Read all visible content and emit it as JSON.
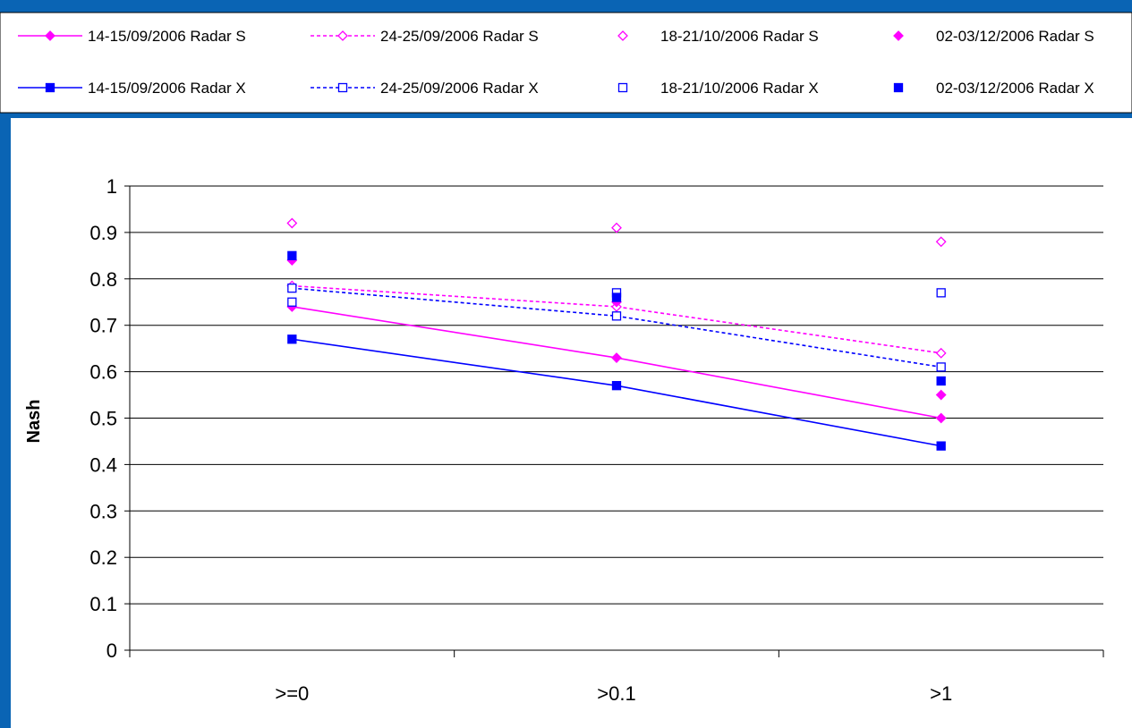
{
  "colors": {
    "background": "#0a64b4",
    "panel": "#ffffff",
    "radar_s": "#ff00ff",
    "radar_x": "#0000ff",
    "gridline": "#000000"
  },
  "chart_data": {
    "type": "line",
    "title": "",
    "xlabel": "",
    "ylabel": "Nash",
    "categories": [
      ">=0",
      ">0.1",
      ">1"
    ],
    "ylim": [
      0,
      1
    ],
    "yticks": [
      "0",
      "0.1",
      "0.2",
      "0.3",
      "0.4",
      "0.5",
      "0.6",
      "0.7",
      "0.8",
      "0.9",
      "1"
    ],
    "grid": true,
    "legend_position": "top",
    "series": [
      {
        "name": "14-15/09/2006 Radar S",
        "color": "#ff00ff",
        "marker": "diamond",
        "filled": true,
        "line": "solid",
        "values": [
          0.74,
          0.63,
          0.5
        ]
      },
      {
        "name": "24-25/09/2006 Radar S",
        "color": "#ff00ff",
        "marker": "diamond",
        "filled": false,
        "line": "dashed",
        "values": [
          0.785,
          0.74,
          0.64
        ]
      },
      {
        "name": "18-21/10/2006 Radar S",
        "color": "#ff00ff",
        "marker": "diamond",
        "filled": false,
        "line": "none",
        "values": [
          0.92,
          0.91,
          0.88
        ]
      },
      {
        "name": "02-03/12/2006 Radar S",
        "color": "#ff00ff",
        "marker": "diamond",
        "filled": true,
        "line": "none",
        "values": [
          0.84,
          0.75,
          0.55
        ]
      },
      {
        "name": "14-15/09/2006 Radar X",
        "color": "#0000ff",
        "marker": "square",
        "filled": true,
        "line": "solid",
        "values": [
          0.67,
          0.57,
          0.44
        ]
      },
      {
        "name": "24-25/09/2006 Radar X",
        "color": "#0000ff",
        "marker": "square",
        "filled": false,
        "line": "dashed",
        "values": [
          0.78,
          0.72,
          0.61
        ]
      },
      {
        "name": "18-21/10/2006 Radar X",
        "color": "#0000ff",
        "marker": "square",
        "filled": false,
        "line": "none",
        "values": [
          0.75,
          0.77,
          0.77
        ]
      },
      {
        "name": "02-03/12/2006 Radar X",
        "color": "#0000ff",
        "marker": "square",
        "filled": true,
        "line": "none",
        "values": [
          0.85,
          0.76,
          0.58
        ]
      }
    ]
  }
}
